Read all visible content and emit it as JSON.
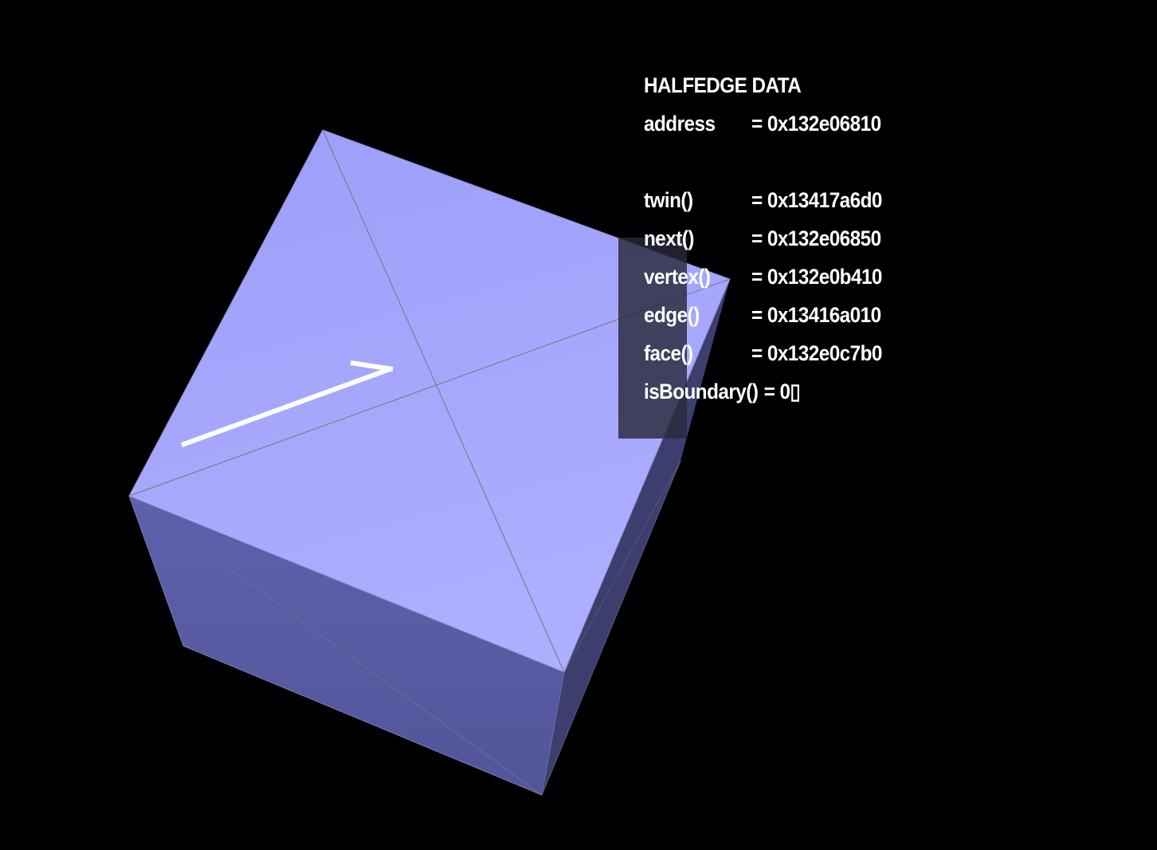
{
  "halfedge_data": {
    "title": "HALFEDGE DATA",
    "address": {
      "label": "address",
      "value": "= 0x132e06810"
    },
    "twin": {
      "label": "twin()",
      "value": "= 0x13417a6d0"
    },
    "next": {
      "label": "next()",
      "value": "= 0x132e06850"
    },
    "vertex": {
      "label": "vertex()",
      "value": "= 0x132e0b410"
    },
    "edge": {
      "label": "edge()",
      "value": "= 0x13416a010"
    },
    "face": {
      "label": "face()",
      "value": "= 0x132e0c7b0"
    },
    "is_boundary": {
      "label": "isBoundary()",
      "value": "= 0",
      "trailing_glyph": "▯"
    }
  },
  "colors": {
    "background": "#000000",
    "top_face_light": "#abacff",
    "top_face_dark": "#9d9ff9",
    "front_face": "#5658a0",
    "right_face": "#3c3d6c",
    "wireframe": "#777777",
    "halfedge_arrow": "#ffffff",
    "text": "#ffffff"
  }
}
